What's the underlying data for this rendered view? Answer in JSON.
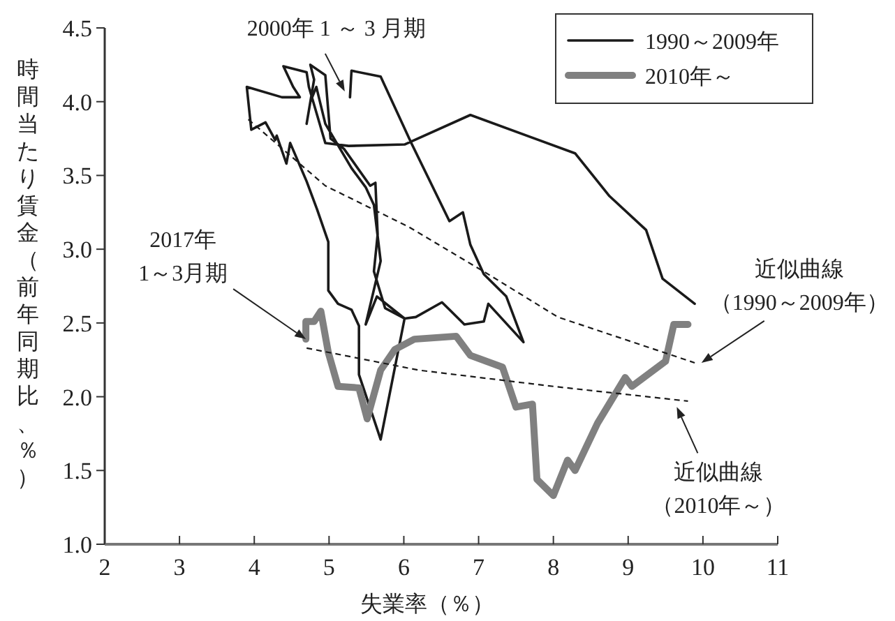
{
  "chart_data": {
    "type": "line",
    "xlabel": "失業率（％）",
    "ylabel": "時間当たり賃金（前年同期比、％）",
    "xlim": [
      2,
      11
    ],
    "ylim": [
      1,
      4.5
    ],
    "xticks": [
      2,
      3,
      4,
      5,
      6,
      7,
      8,
      9,
      10,
      11
    ],
    "yticks": [
      {
        "value": 1,
        "label": "1.0"
      },
      {
        "value": 1.5,
        "label": "1.5"
      },
      {
        "value": 2,
        "label": "2.0"
      },
      {
        "value": 2.5,
        "label": "2.5"
      },
      {
        "value": 3,
        "label": "3.0"
      },
      {
        "value": 3.5,
        "label": "3.5"
      },
      {
        "value": 4,
        "label": "4.0"
      },
      {
        "value": 4.5,
        "label": "4.5"
      }
    ],
    "legend": "top right",
    "marker": "none",
    "grid": false,
    "series": [
      {
        "name": "1990～2009年",
        "color": "#1a1a1a",
        "line_style": "solid",
        "x": [
          5.28,
          5.3,
          5.69,
          6.1,
          6.61,
          6.79,
          6.89,
          7.07,
          7.37,
          7.6,
          7.13,
          7.07,
          6.81,
          6.61,
          6.51,
          6.16,
          6.01,
          5.64,
          5.49,
          5.69,
          5.6,
          5.49,
          5.3,
          4.95,
          4.83,
          4.75,
          4.7,
          4.8,
          4.75,
          4.95,
          5.02,
          5.2,
          5.55,
          5.62,
          5.65,
          5.6,
          5.75,
          6.01,
          5.69,
          5.4,
          5.4,
          5.3,
          5.12,
          4.99,
          4.99,
          4.84,
          4.7,
          4.48,
          4.43,
          4.3,
          4.28,
          4.15,
          3.96,
          3.9,
          4.37,
          4.61,
          4.52,
          4.39,
          4.7,
          4.73,
          4.95,
          5.26,
          6.01,
          6.89,
          8.29,
          8.75,
          9.24,
          9.46,
          9.89
        ],
        "values": [
          4.03,
          4.21,
          4.17,
          3.72,
          3.19,
          3.25,
          3.03,
          2.83,
          2.68,
          2.37,
          2.63,
          2.51,
          2.49,
          2.59,
          2.64,
          2.54,
          2.53,
          2.68,
          2.49,
          2.92,
          3.3,
          3.42,
          3.55,
          3.85,
          4.1,
          4,
          3.85,
          4.15,
          4.25,
          4.18,
          3.75,
          3.68,
          3.43,
          3.45,
          3.1,
          2.85,
          2.6,
          2.53,
          1.71,
          2.15,
          2.48,
          2.59,
          2.63,
          2.72,
          3.05,
          3.27,
          3.46,
          3.72,
          3.58,
          3.77,
          3.74,
          3.86,
          3.81,
          4.1,
          4.03,
          4.03,
          4.1,
          4.24,
          4.2,
          4.1,
          3.72,
          3.7,
          3.71,
          3.91,
          3.65,
          3.36,
          3.13,
          2.8,
          2.63
        ]
      },
      {
        "name": "2010年～",
        "color": "#808080",
        "line_style": "solid",
        "x": [
          9.8,
          9.61,
          9.5,
          9.05,
          8.96,
          8.59,
          8.29,
          8.19,
          8.0,
          7.78,
          7.72,
          7.5,
          7.32,
          6.89,
          6.7,
          6.14,
          5.88,
          5.69,
          5.51,
          5.4,
          5.12,
          4.99,
          4.89,
          4.8,
          4.69,
          4.69
        ],
        "values": [
          2.49,
          2.49,
          2.24,
          2.07,
          2.13,
          1.82,
          1.5,
          1.57,
          1.33,
          1.44,
          1.95,
          1.93,
          2.2,
          2.28,
          2.41,
          2.39,
          2.32,
          2.18,
          1.85,
          2.06,
          2.07,
          2.3,
          2.58,
          2.51,
          2.51,
          2.39
        ]
      },
      {
        "color": "#1a1a1a",
        "line_style": "dashed",
        "x": [
          3.92,
          4.95,
          6.07,
          7.13,
          8.06,
          9.89
        ],
        "values": [
          3.88,
          3.43,
          3.15,
          2.83,
          2.54,
          2.23
        ]
      },
      {
        "color": "#1a1a1a",
        "line_style": "dashed",
        "x": [
          4.7,
          6.2,
          8.0,
          9.8
        ],
        "values": [
          2.33,
          2.18,
          2.07,
          1.97
        ]
      }
    ],
    "annotations": [
      {
        "text": "2000年 1 ～ 3 月期",
        "x": 5.21,
        "y": 4.07
      },
      {
        "text": "2017年1～3月期",
        "x": 4.69,
        "y": 2.39
      },
      {
        "text": "近似曲線（1990～2009年）",
        "x": 9.98,
        "y": 2.23
      },
      {
        "text": "近似曲線（2010年～）",
        "x": 9.65,
        "y": 1.93
      }
    ]
  }
}
